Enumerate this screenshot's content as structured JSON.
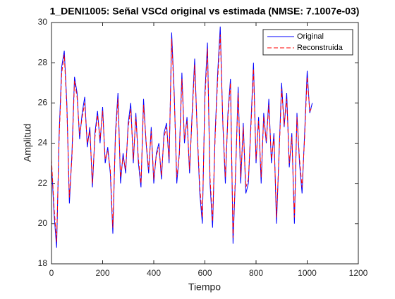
{
  "chart_data": {
    "type": "line",
    "title": "1_DENI1005: Señal VSCd original vs estimada (NMSE: 7.1007e-03)",
    "xlabel": "Tiempo",
    "ylabel": "Amplitud",
    "x": [
      0,
      10,
      20,
      30,
      40,
      50,
      60,
      70,
      80,
      90,
      100,
      110,
      120,
      130,
      140,
      150,
      160,
      170,
      180,
      190,
      200,
      210,
      220,
      230,
      240,
      250,
      260,
      270,
      280,
      290,
      300,
      310,
      320,
      330,
      340,
      350,
      360,
      370,
      380,
      390,
      400,
      410,
      420,
      430,
      440,
      450,
      460,
      470,
      480,
      490,
      500,
      510,
      520,
      530,
      540,
      550,
      560,
      570,
      580,
      590,
      600,
      610,
      620,
      630,
      640,
      650,
      660,
      670,
      680,
      690,
      700,
      710,
      720,
      730,
      740,
      750,
      760,
      770,
      780,
      790,
      800,
      810,
      820,
      830,
      840,
      850,
      860,
      870,
      880,
      890,
      900,
      910,
      920,
      930,
      940,
      950,
      960,
      970,
      980,
      990,
      1000,
      1010,
      1020
    ],
    "series": [
      {
        "name": "Original",
        "color": "#0000ff",
        "dash": false,
        "values": [
          23.0,
          20.5,
          18.8,
          24.5,
          27.8,
          28.6,
          26.0,
          21.0,
          23.5,
          27.3,
          26.5,
          24.2,
          25.5,
          26.3,
          23.8,
          24.8,
          21.8,
          24.5,
          25.6,
          24.0,
          25.8,
          23.0,
          23.8,
          22.5,
          19.5,
          24.5,
          26.5,
          22.0,
          23.5,
          22.5,
          25.0,
          26.0,
          23.0,
          25.5,
          23.0,
          21.8,
          26.2,
          24.0,
          22.5,
          24.8,
          22.0,
          23.5,
          24.0,
          22.2,
          24.5,
          25.0,
          23.0,
          29.5,
          26.5,
          22.0,
          23.5,
          27.5,
          24.0,
          25.3,
          22.5,
          25.5,
          28.2,
          24.5,
          21.5,
          20.0,
          26.5,
          29.0,
          22.0,
          19.8,
          24.5,
          27.5,
          29.8,
          25.0,
          22.0,
          25.5,
          27.2,
          19.0,
          22.5,
          26.8,
          22.0,
          25.0,
          21.5,
          22.0,
          25.0,
          28.0,
          23.0,
          25.3,
          22.0,
          25.5,
          24.0,
          26.2,
          23.0,
          24.5,
          20.0,
          23.5,
          27.0,
          24.8,
          26.5,
          22.8,
          24.5,
          20.0,
          25.5,
          23.0,
          21.5,
          24.5,
          27.6,
          25.5,
          26.0
        ]
      },
      {
        "name": "Reconstruida",
        "color": "#ff0000",
        "dash": true,
        "values": [
          23.2,
          20.8,
          19.1,
          24.3,
          27.5,
          28.4,
          25.8,
          21.3,
          23.3,
          27.1,
          26.3,
          24.4,
          25.3,
          26.0,
          24.0,
          24.6,
          22.0,
          24.3,
          25.4,
          24.2,
          25.6,
          23.2,
          23.6,
          22.7,
          19.8,
          24.3,
          26.2,
          22.3,
          23.3,
          22.7,
          24.8,
          25.7,
          23.2,
          25.3,
          23.2,
          22.0,
          25.9,
          24.1,
          22.7,
          24.6,
          22.2,
          23.4,
          23.8,
          22.4,
          24.3,
          24.8,
          23.2,
          29.2,
          26.3,
          22.3,
          23.4,
          27.2,
          24.2,
          25.1,
          22.7,
          25.3,
          27.9,
          24.6,
          21.8,
          20.3,
          26.2,
          28.7,
          22.3,
          20.1,
          24.3,
          27.2,
          29.4,
          25.1,
          22.3,
          25.3,
          27.0,
          19.3,
          22.6,
          26.5,
          22.3,
          24.8,
          21.8,
          22.2,
          24.8,
          27.7,
          23.2,
          25.1,
          22.3,
          25.3,
          24.1,
          25.9,
          23.2,
          24.3,
          20.3,
          23.4,
          26.7,
          24.9,
          26.2,
          23.0,
          24.3,
          20.3,
          25.3,
          23.2,
          21.8,
          24.3,
          27.3,
          25.6,
          25.8
        ]
      }
    ],
    "xlim": [
      0,
      1200
    ],
    "xticks": [
      0,
      200,
      400,
      600,
      800,
      1000,
      1200
    ],
    "ylim": [
      18,
      30
    ],
    "yticks": [
      18,
      20,
      22,
      24,
      26,
      28,
      30
    ],
    "legend": "top-right",
    "grid": false
  }
}
